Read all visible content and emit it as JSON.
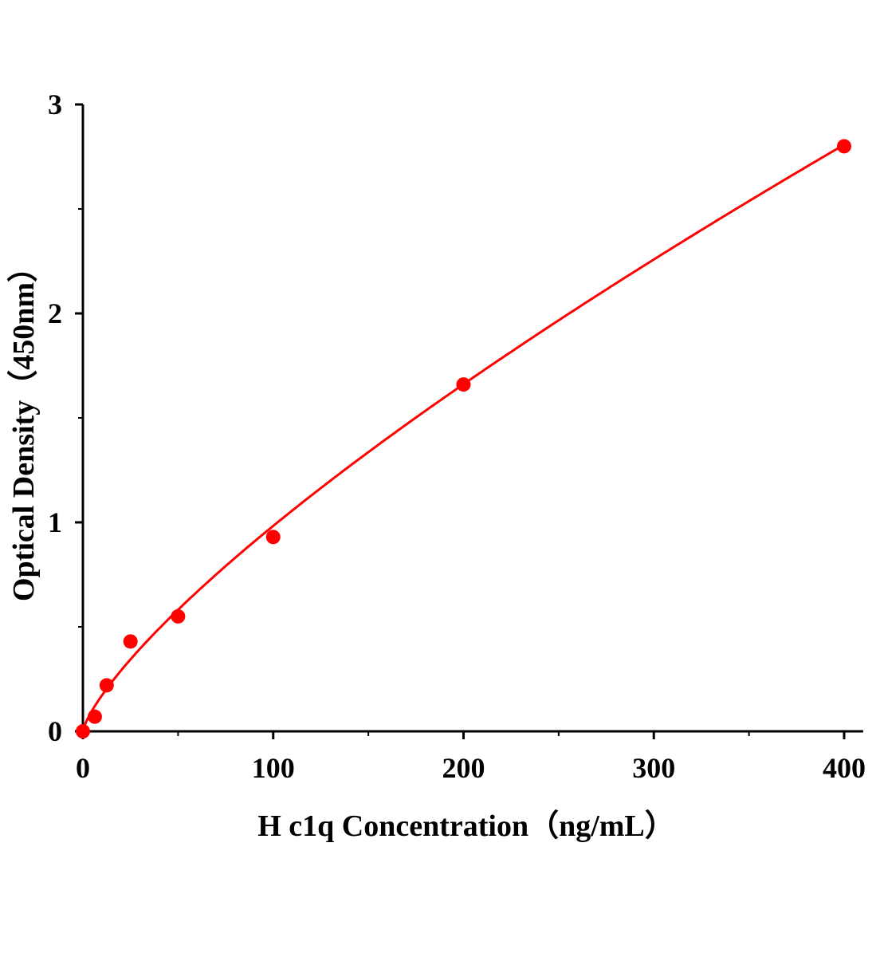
{
  "chart_data": {
    "type": "scatter",
    "title": "",
    "xlabel": "H c1q Concentration（ng/mL）",
    "ylabel": "Optical Density（450nm）",
    "xlim": [
      0,
      410
    ],
    "ylim": [
      0,
      3
    ],
    "x_ticks": [
      0,
      100,
      200,
      300,
      400
    ],
    "y_ticks": [
      0,
      1,
      2,
      3
    ],
    "grid": false,
    "color": "#ff0000",
    "series": [
      {
        "x": [
          0,
          6.25,
          12.5,
          25,
          50,
          100,
          200,
          400
        ],
        "y": [
          0.0,
          0.07,
          0.22,
          0.43,
          0.55,
          0.93,
          1.66,
          2.8
        ]
      }
    ],
    "fit_curve": {
      "type": "power",
      "a": 0.0301,
      "b": 0.757
    }
  }
}
